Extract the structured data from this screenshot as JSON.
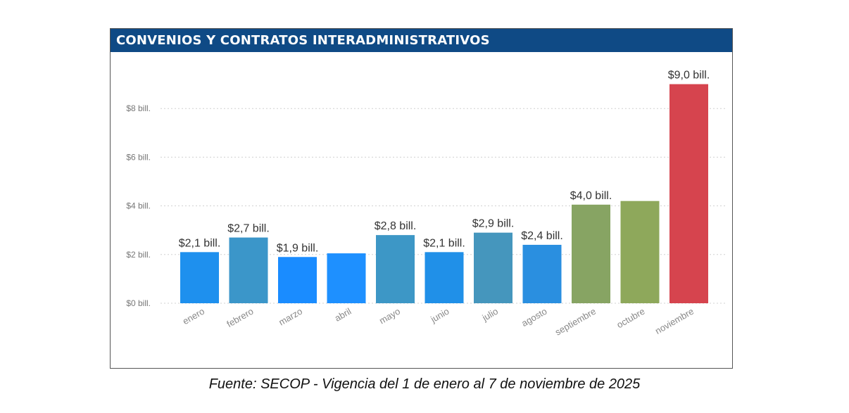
{
  "chart_data": {
    "type": "bar",
    "title": "CONVENIOS Y CONTRATOS INTERADMINISTRATIVOS",
    "xlabel": "",
    "ylabel": "",
    "ylim": [
      0,
      9.3
    ],
    "grid": true,
    "yticks": [
      0,
      2,
      4,
      6,
      8
    ],
    "ytick_labels": [
      "$0 bill.",
      "$2 bill.",
      "$4 bill.",
      "$6 bill.",
      "$8 bill."
    ],
    "categories": [
      "enero",
      "febrero",
      "marzo",
      "abril",
      "mayo",
      "junio",
      "julio",
      "agosto",
      "septiembre",
      "octubre",
      "noviembre"
    ],
    "values": [
      2.1,
      2.7,
      1.9,
      2.05,
      2.8,
      2.1,
      2.9,
      2.4,
      4.05,
      4.2,
      9.0
    ],
    "data_labels": [
      "$2,1 bill.",
      "$2,7 bill.",
      "$1,9 bill.",
      "",
      "$2,8 bill.",
      "$2,1 bill.",
      "$2,9 bill.",
      "$2,4 bill.",
      "$4,0 bill.",
      "",
      "$9,0 bill."
    ],
    "colors": [
      "#1e90ee",
      "#3b96c9",
      "#1a8cff",
      "#1e90ff",
      "#3d97c6",
      "#2090e8",
      "#4596bd",
      "#2a8fe0",
      "#87a463",
      "#8ea85b",
      "#d6444e"
    ]
  },
  "source": "Fuente: SECOP - Vigencia del 1 de enero al 7 de noviembre de 2025"
}
